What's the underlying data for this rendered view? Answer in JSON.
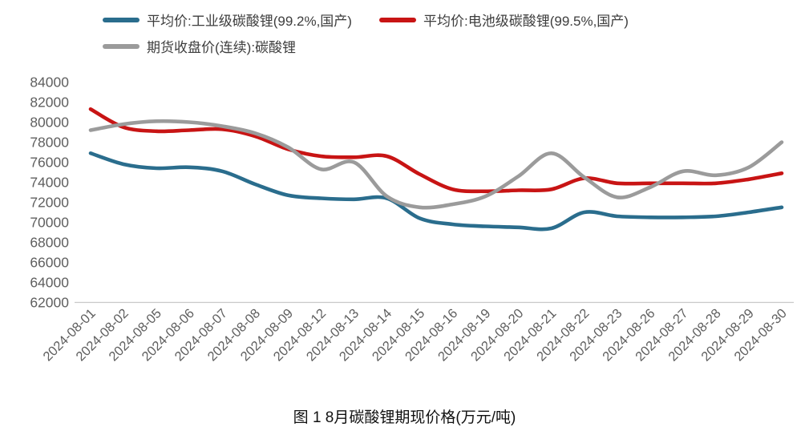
{
  "legend": {
    "rows": [
      [
        0,
        1
      ],
      [
        2
      ]
    ]
  },
  "caption": "图 1  8月碳酸锂期现价格(万元/吨)",
  "axis": {
    "y_tick_labels": [
      "84000",
      "82000",
      "80000",
      "78000",
      "76000",
      "74000",
      "72000",
      "70000",
      "68000",
      "66000",
      "64000",
      "62000"
    ],
    "text_color": "#5f5f5f",
    "axis_line_color": "#c9c9c9"
  },
  "chart_data": {
    "type": "line",
    "title": "",
    "xlabel": "",
    "ylabel": "",
    "grid": false,
    "legend_position": "top-left",
    "ylim": [
      62000,
      84000
    ],
    "ytick_step": 2000,
    "x": [
      "2024-08-01",
      "2024-08-02",
      "2024-08-05",
      "2024-08-06",
      "2024-08-07",
      "2024-08-08",
      "2024-08-09",
      "2024-08-12",
      "2024-08-13",
      "2024-08-14",
      "2024-08-15",
      "2024-08-16",
      "2024-08-19",
      "2024-08-20",
      "2024-08-21",
      "2024-08-22",
      "2024-08-23",
      "2024-08-26",
      "2024-08-27",
      "2024-08-28",
      "2024-08-29",
      "2024-08-30"
    ],
    "series": [
      {
        "name": "平均价:工业级碳酸锂(99.2%,国产)",
        "color": "#2a6d8d",
        "values": [
          76900,
          75800,
          75400,
          75500,
          75100,
          73800,
          72700,
          72400,
          72300,
          72400,
          70400,
          69800,
          69600,
          69500,
          69400,
          71000,
          70600,
          70500,
          70500,
          70600,
          71000,
          71500
        ]
      },
      {
        "name": "平均价:电池级碳酸锂(99.5%,国产)",
        "color": "#c81414",
        "values": [
          81300,
          79500,
          79100,
          79200,
          79300,
          78600,
          77300,
          76600,
          76500,
          76600,
          74800,
          73300,
          73100,
          73200,
          73300,
          74400,
          73900,
          73900,
          73900,
          73900,
          74300,
          74900
        ]
      },
      {
        "name": "期货收盘价(连续):碳酸锂",
        "color": "#9b9b9b",
        "values": [
          79200,
          79800,
          80100,
          80000,
          79600,
          78900,
          77500,
          75300,
          76000,
          72600,
          71500,
          71800,
          72600,
          74600,
          76900,
          74500,
          72500,
          73500,
          75100,
          74700,
          75500,
          78000
        ]
      }
    ]
  }
}
